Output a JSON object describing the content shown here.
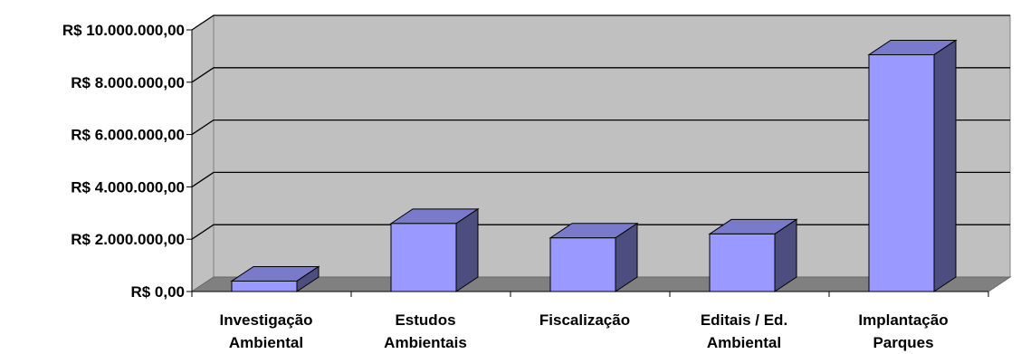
{
  "chart_data": {
    "type": "bar",
    "categories": [
      [
        "Investigação",
        "Ambiental"
      ],
      [
        "Estudos",
        "Ambientais"
      ],
      [
        "Fiscalização"
      ],
      [
        "Editais / Ed.",
        "Ambiental"
      ],
      [
        "Implantação",
        "Parques"
      ]
    ],
    "values": [
      400000,
      2600000,
      2050000,
      2200000,
      9050000
    ],
    "y_ticks": [
      {
        "value": 0,
        "label": "R$ 0,00"
      },
      {
        "value": 2000000,
        "label": "R$ 2.000.000,00"
      },
      {
        "value": 4000000,
        "label": "R$ 4.000.000,00"
      },
      {
        "value": 6000000,
        "label": "R$ 6.000.000,00"
      },
      {
        "value": 8000000,
        "label": "R$ 8.000.000,00"
      },
      {
        "value": 10000000,
        "label": "R$ 10.000.000,00"
      }
    ],
    "ylim": [
      0,
      10000000
    ],
    "grid": true,
    "colors": {
      "bar_front": "#9999ff",
      "bar_top": "#7a7acc",
      "bar_side": "#4d4d80",
      "wall": "#c0c0c0",
      "floor": "#808080"
    }
  }
}
